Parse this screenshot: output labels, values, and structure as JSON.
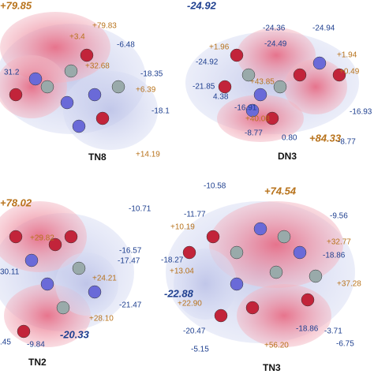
{
  "panels": [
    {
      "name": "TN8",
      "extremes": [
        "+79.85"
      ],
      "labels": [
        "+79.83",
        "+3.4",
        "-6.48",
        "+32.68",
        "-18.35",
        "31.2",
        "+6.39",
        "-18.1",
        "+14.19"
      ]
    },
    {
      "name": "DN3",
      "extremes": [
        "-24.92",
        "+84.33"
      ],
      "labels": [
        "-24.36",
        "-24.94",
        "-24.49",
        "+1.96",
        "+1.94",
        "-24.92",
        "-21.85",
        "+0.49",
        "+43.85",
        "4.38",
        "-16.91",
        "-16.93",
        "+40.08",
        "-8.77",
        "0.80",
        "-8.77"
      ]
    },
    {
      "name": "TN2",
      "extremes": [
        "+78.02",
        "-20.33"
      ],
      "labels": [
        "-10.71",
        "+29.82",
        "-16.57",
        "-17.47",
        "30.11",
        "+24.21",
        "-21.47",
        "+28.10",
        ".45",
        "-9.84"
      ]
    },
    {
      "name": "TN3",
      "extremes": [
        "+74.54",
        "-22.88"
      ],
      "labels": [
        "-10.58",
        "-11.77",
        "-9.56",
        "+10.19",
        "+32.77",
        "-18.86",
        "-18.27",
        "+13.04",
        "+37.28",
        "+22.90",
        "-20.47",
        "-18.86",
        "-3.71",
        "-5.15",
        "+56.20",
        "-6.75"
      ]
    }
  ]
}
